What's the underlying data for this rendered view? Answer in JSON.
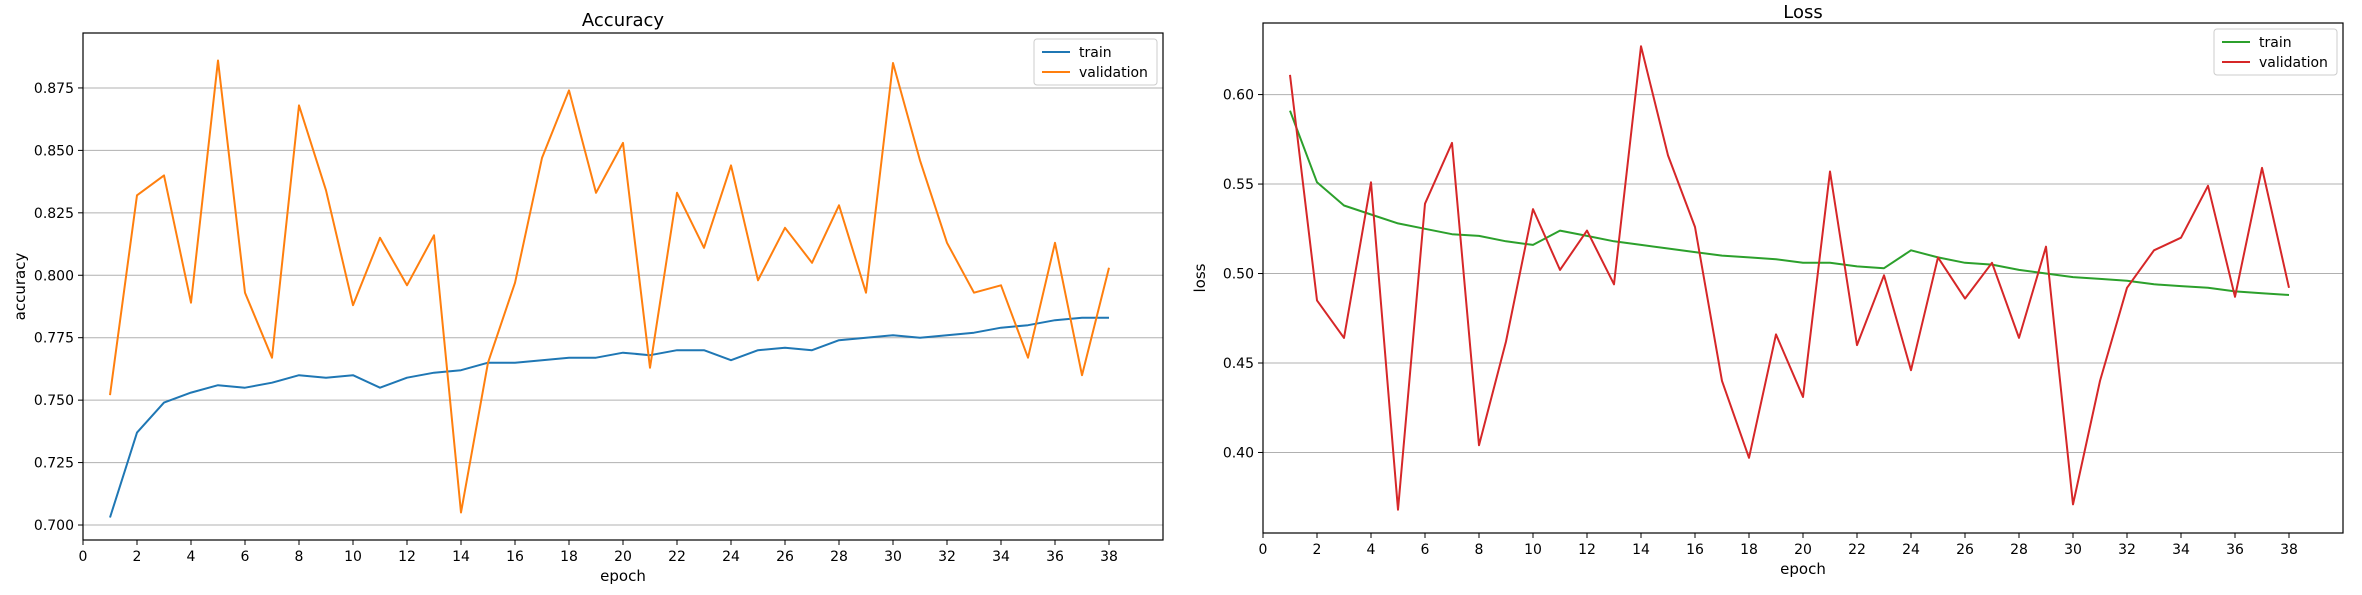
{
  "chart_data": [
    {
      "type": "line",
      "title": "Accuracy",
      "xlabel": "epoch",
      "ylabel": "accuracy",
      "xlim": [
        0,
        40
      ],
      "ylim": [
        0.694,
        0.897
      ],
      "xticks": [
        0,
        2,
        4,
        6,
        8,
        10,
        12,
        14,
        16,
        18,
        20,
        22,
        24,
        26,
        28,
        30,
        32,
        34,
        36,
        38
      ],
      "yticks": [
        0.7,
        0.725,
        0.75,
        0.775,
        0.8,
        0.825,
        0.85,
        0.875
      ],
      "ytick_format": 3,
      "grid": "horizontal",
      "legend": "top-right",
      "x": [
        1,
        2,
        3,
        4,
        5,
        6,
        7,
        8,
        9,
        10,
        11,
        12,
        13,
        14,
        15,
        16,
        17,
        18,
        19,
        20,
        21,
        22,
        23,
        24,
        25,
        26,
        27,
        28,
        29,
        30,
        31,
        32,
        33,
        34,
        35,
        36,
        37,
        38
      ],
      "series": [
        {
          "name": "train",
          "color": "#1f77b4",
          "values": [
            0.703,
            0.737,
            0.749,
            0.753,
            0.756,
            0.755,
            0.757,
            0.76,
            0.759,
            0.76,
            0.755,
            0.759,
            0.761,
            0.762,
            0.765,
            0.765,
            0.766,
            0.767,
            0.767,
            0.769,
            0.768,
            0.77,
            0.77,
            0.766,
            0.77,
            0.771,
            0.77,
            0.774,
            0.775,
            0.776,
            0.775,
            0.776,
            0.777,
            0.779,
            0.78,
            0.782,
            0.783,
            0.783
          ]
        },
        {
          "name": "validation",
          "color": "#ff7f0e",
          "values": [
            0.752,
            0.832,
            0.84,
            0.789,
            0.886,
            0.793,
            0.767,
            0.868,
            0.834,
            0.788,
            0.815,
            0.796,
            0.816,
            0.705,
            0.765,
            0.797,
            0.847,
            0.874,
            0.833,
            0.853,
            0.763,
            0.833,
            0.811,
            0.844,
            0.798,
            0.819,
            0.805,
            0.828,
            0.793,
            0.885,
            0.846,
            0.813,
            0.793,
            0.796,
            0.767,
            0.813,
            0.76,
            0.803
          ]
        }
      ]
    },
    {
      "type": "line",
      "title": "Loss",
      "xlabel": "epoch",
      "ylabel": "loss",
      "xlim": [
        0,
        40
      ],
      "ylim": [
        0.355,
        0.64
      ],
      "xticks": [
        0,
        2,
        4,
        6,
        8,
        10,
        12,
        14,
        16,
        18,
        20,
        22,
        24,
        26,
        28,
        30,
        32,
        34,
        36,
        38
      ],
      "yticks": [
        0.4,
        0.45,
        0.5,
        0.55,
        0.6
      ],
      "ytick_format": 2,
      "grid": "horizontal",
      "legend": "top-right",
      "x": [
        1,
        2,
        3,
        4,
        5,
        6,
        7,
        8,
        9,
        10,
        11,
        12,
        13,
        14,
        15,
        16,
        17,
        18,
        19,
        20,
        21,
        22,
        23,
        24,
        25,
        26,
        27,
        28,
        29,
        30,
        31,
        32,
        33,
        34,
        35,
        36,
        37,
        38
      ],
      "series": [
        {
          "name": "train",
          "color": "#2ca02c",
          "values": [
            0.591,
            0.551,
            0.538,
            0.533,
            0.528,
            0.525,
            0.522,
            0.521,
            0.518,
            0.516,
            0.524,
            0.521,
            0.518,
            0.516,
            0.514,
            0.512,
            0.51,
            0.509,
            0.508,
            0.506,
            0.506,
            0.504,
            0.503,
            0.513,
            0.509,
            0.506,
            0.505,
            0.502,
            0.5,
            0.498,
            0.497,
            0.496,
            0.494,
            0.493,
            0.492,
            0.49,
            0.489,
            0.488
          ]
        },
        {
          "name": "validation",
          "color": "#d62728",
          "values": [
            0.611,
            0.485,
            0.464,
            0.551,
            0.368,
            0.539,
            0.573,
            0.404,
            0.462,
            0.536,
            0.502,
            0.524,
            0.494,
            0.627,
            0.566,
            0.526,
            0.44,
            0.397,
            0.466,
            0.431,
            0.557,
            0.46,
            0.499,
            0.446,
            0.509,
            0.486,
            0.506,
            0.464,
            0.515,
            0.371,
            0.44,
            0.492,
            0.513,
            0.52,
            0.549,
            0.487,
            0.559,
            0.492
          ]
        }
      ]
    }
  ]
}
